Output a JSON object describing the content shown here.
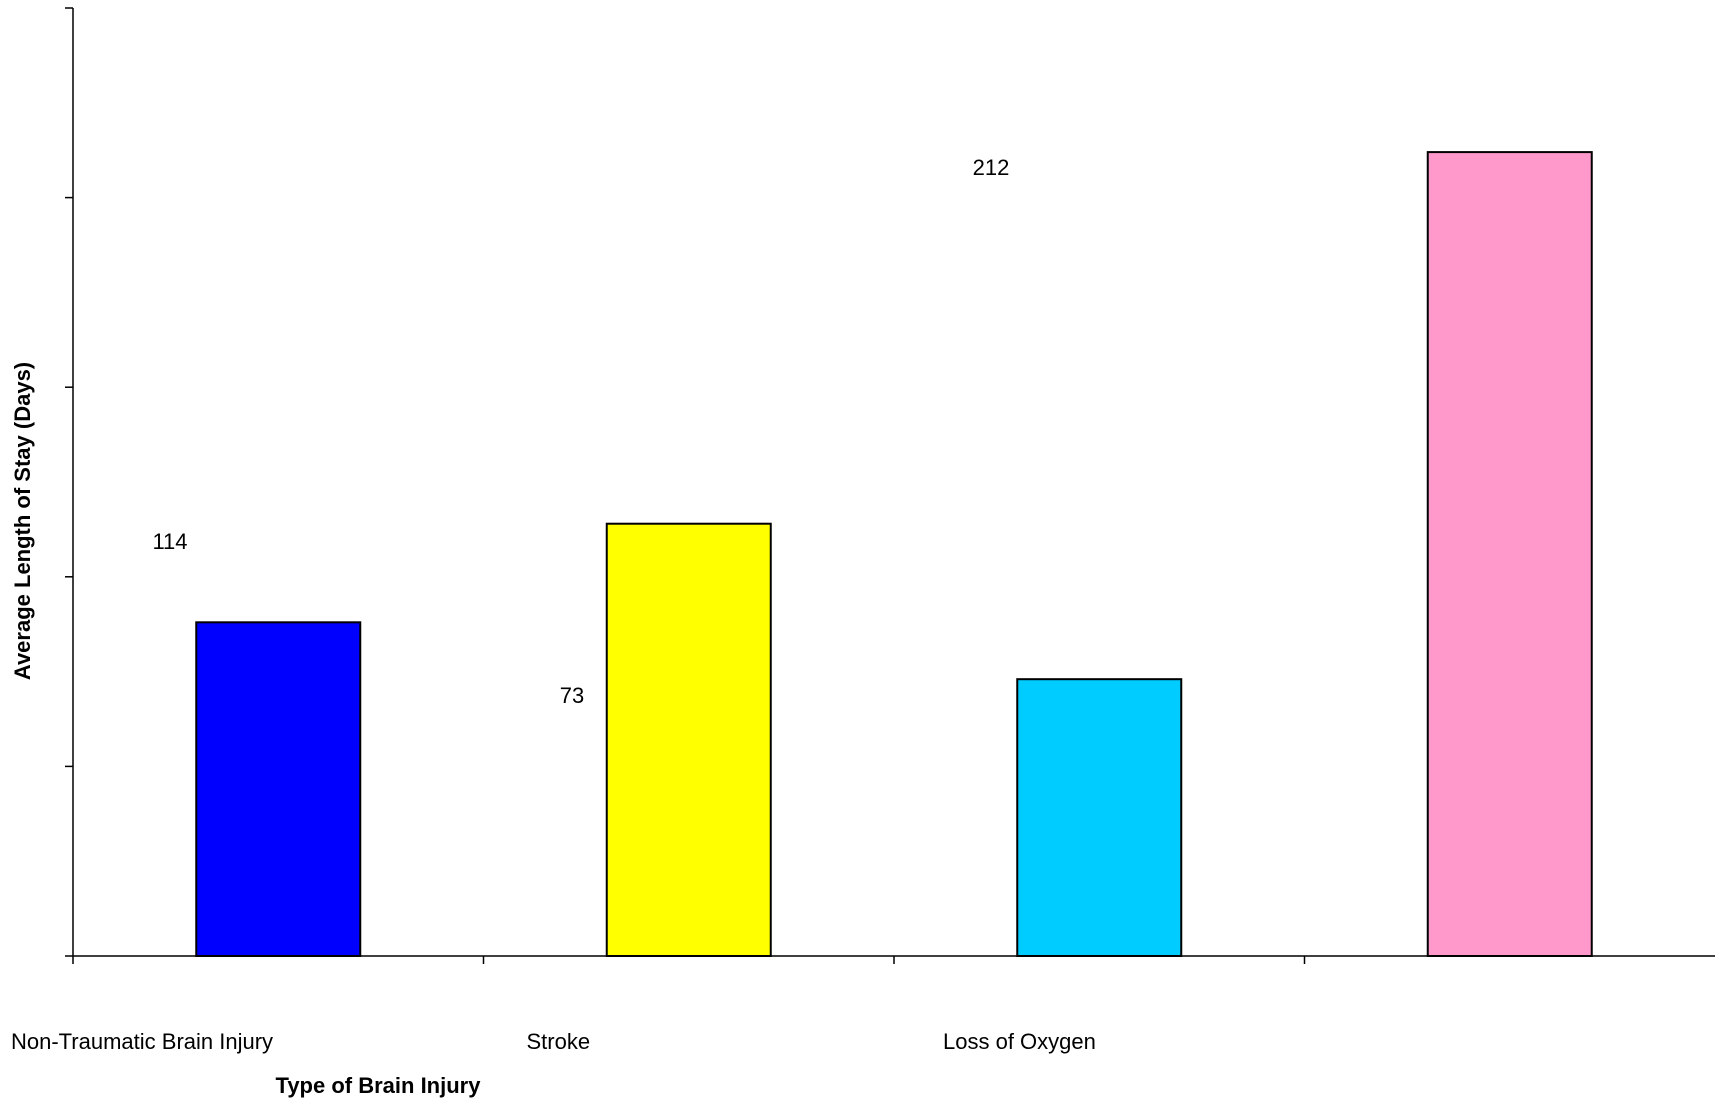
{
  "chart_data": {
    "type": "bar",
    "title": "",
    "xlabel": "Type of Brain Injury",
    "ylabel": "Average Length of Stay (Days)",
    "ylim": [
      0,
      250
    ],
    "ytick_step": 50,
    "ytick_labels_shown": false,
    "grid": false,
    "legend": "none",
    "categories": [
      "Non-Traumatic Brain Injury",
      "Stroke",
      "Loss of Oxygen",
      ""
    ],
    "values": [
      88,
      114,
      73,
      212
    ],
    "bar_colors": [
      "#0000ff",
      "#ffff00",
      "#00ccff",
      "#ff99cc"
    ],
    "data_labels": [
      {
        "text": "114"
      },
      {
        "text": "73"
      },
      {
        "text": "212"
      }
    ]
  }
}
